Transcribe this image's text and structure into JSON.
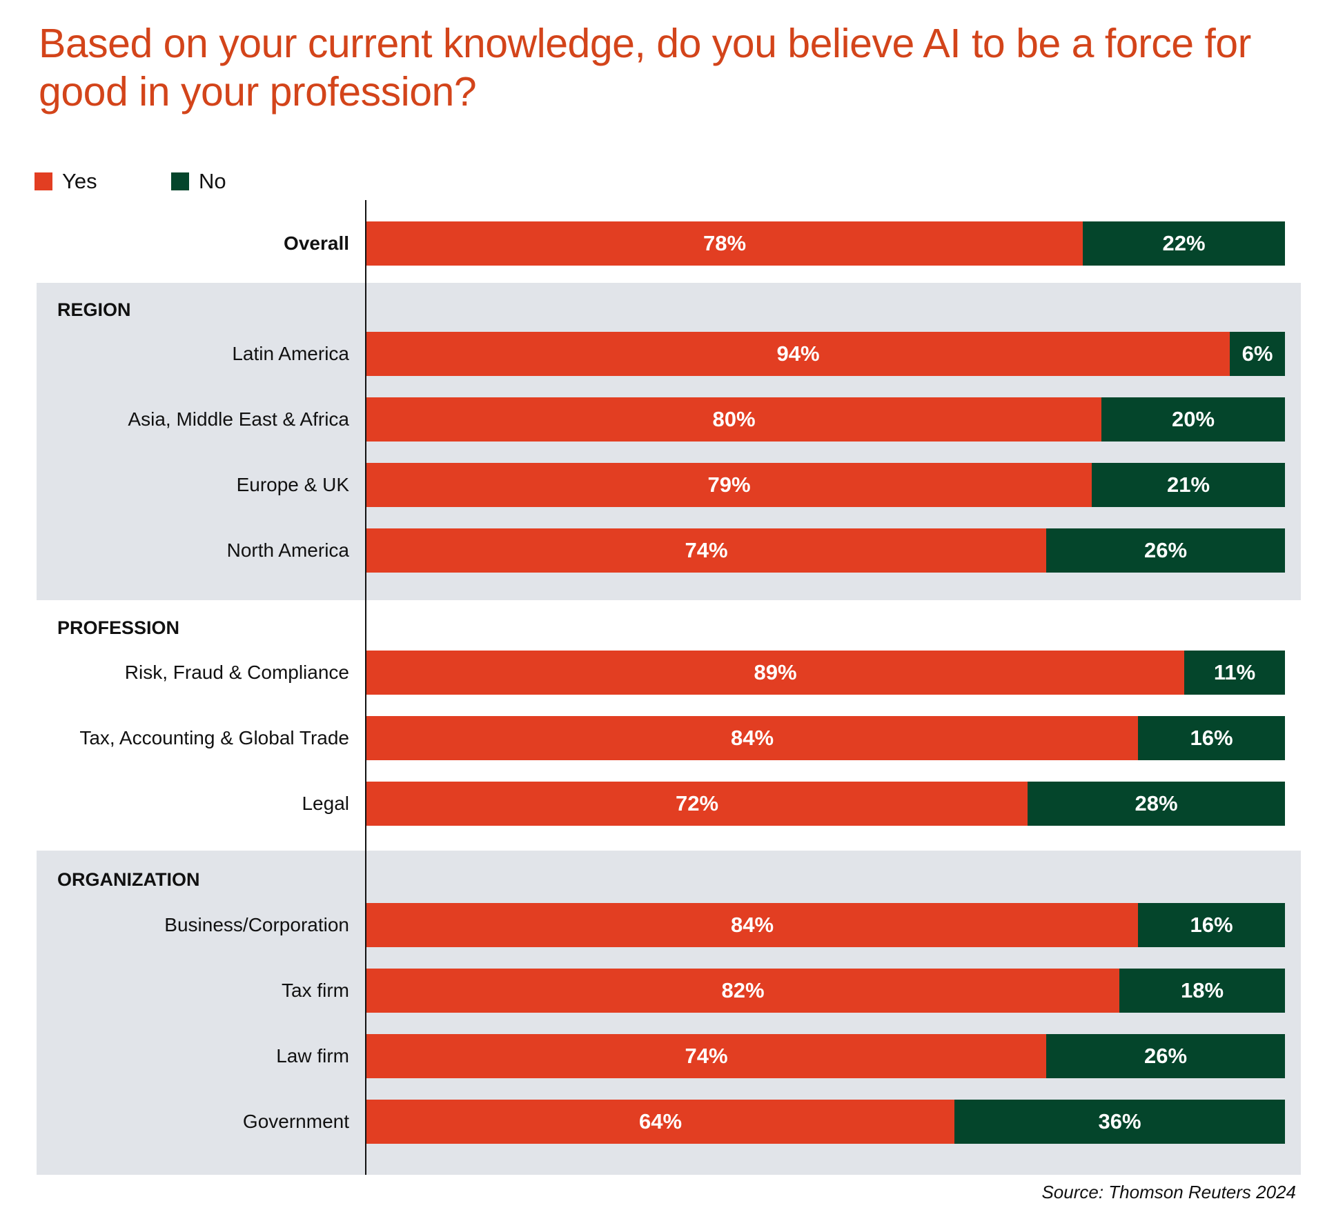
{
  "title": "Based on your current knowledge, do you believe AI to be a force for good in your profession?",
  "legend": {
    "yes": "Yes",
    "no": "No"
  },
  "colors": {
    "yes": "#e23e22",
    "no": "#04452b",
    "title": "#d3441a",
    "section_bg": "#e1e4e9"
  },
  "source": "Source: Thomson Reuters 2024",
  "chart_data": {
    "type": "bar",
    "orientation": "horizontal",
    "stacked": true,
    "grid": false,
    "legend_position": "top-left",
    "xlim": [
      0,
      100
    ],
    "series": [
      {
        "name": "Yes",
        "values": [
          78,
          94,
          80,
          79,
          74,
          89,
          84,
          72,
          84,
          82,
          74,
          64
        ]
      },
      {
        "name": "No",
        "values": [
          22,
          6,
          20,
          21,
          26,
          11,
          16,
          28,
          16,
          18,
          26,
          36
        ]
      }
    ],
    "categories": [
      "Overall",
      "Latin America",
      "Asia, Middle East & Africa",
      "Europe & UK",
      "North America",
      "Risk, Fraud & Compliance",
      "Tax, Accounting & Global Trade",
      "Legal",
      "Business/Corporation",
      "Tax firm",
      "Law firm",
      "Government"
    ],
    "groups": [
      {
        "label": "",
        "categories": [
          "Overall"
        ]
      },
      {
        "label": "REGION",
        "categories": [
          "Latin America",
          "Asia, Middle East & Africa",
          "Europe & UK",
          "North America"
        ]
      },
      {
        "label": "PROFESSION",
        "categories": [
          "Risk, Fraud & Compliance",
          "Tax, Accounting & Global Trade",
          "Legal"
        ]
      },
      {
        "label": "ORGANIZATION",
        "categories": [
          "Business/Corporation",
          "Tax firm",
          "Law firm",
          "Government"
        ]
      }
    ],
    "data_labels": {
      "yes": [
        "78%",
        "94%",
        "80%",
        "79%",
        "74%",
        "89%",
        "84%",
        "72%",
        "84%",
        "82%",
        "74%",
        "64%"
      ],
      "no": [
        "22%",
        "6%",
        "20%",
        "21%",
        "26%",
        "11%",
        "16%",
        "28%",
        "16%",
        "18%",
        "26%",
        "36%"
      ]
    }
  }
}
